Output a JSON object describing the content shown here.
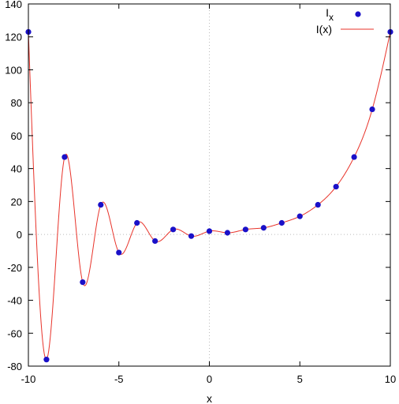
{
  "chart_data": {
    "type": "line",
    "title": "",
    "xlabel": "x",
    "ylabel": "",
    "xlim": [
      -10,
      10
    ],
    "ylim": [
      -80,
      140
    ],
    "x_ticks": [
      -10,
      -5,
      0,
      5,
      10
    ],
    "y_ticks": [
      -80,
      -60,
      -40,
      -20,
      0,
      20,
      40,
      60,
      80,
      100,
      120,
      140
    ],
    "zero_lines": true,
    "grid": false,
    "legend_position": "top-right",
    "series": [
      {
        "name": "I",
        "name_subscript": "x",
        "kind": "scatter",
        "color": "#1a10c8",
        "x": [
          -10,
          -9,
          -8,
          -7,
          -6,
          -5,
          -4,
          -3,
          -2,
          -1,
          0,
          1,
          2,
          3,
          4,
          5,
          6,
          7,
          8,
          9,
          10
        ],
        "y": [
          123,
          -76,
          47,
          -29,
          18,
          -11,
          7,
          -4,
          3,
          -1,
          2,
          1,
          3,
          4,
          7,
          11,
          18,
          29,
          47,
          76,
          123
        ]
      },
      {
        "name": "I(x)",
        "kind": "line",
        "color": "#e8332a",
        "interpolates_series": 0
      }
    ]
  }
}
